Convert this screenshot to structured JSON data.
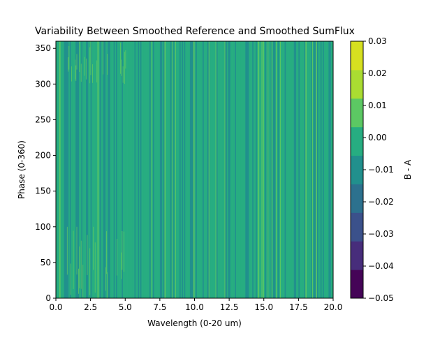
{
  "chart_data": {
    "type": "heatmap",
    "title": "Variability Between Smoothed Reference and Smoothed SumFlux",
    "xlabel": "Wavelength (0-20 um)",
    "ylabel": "Phase (0-360)",
    "xlim": [
      0,
      20
    ],
    "ylim": [
      0,
      360
    ],
    "x_ticks": [
      "0.0",
      "2.5",
      "5.0",
      "7.5",
      "10.0",
      "12.5",
      "15.0",
      "17.5",
      "20.0"
    ],
    "y_ticks": [
      "0",
      "50",
      "100",
      "150",
      "200",
      "250",
      "300",
      "350"
    ],
    "colorbar": {
      "label": "B - A",
      "levels": [
        -0.05,
        -0.04,
        -0.03,
        -0.02,
        -0.01,
        0.0,
        0.01,
        0.02,
        0.03
      ],
      "tick_labels": [
        "−0.05",
        "−0.04",
        "−0.03",
        "−0.02",
        "−0.01",
        "0.00",
        "0.01",
        "0.02",
        "0.03"
      ],
      "colors": [
        "#450457",
        "#472d7b",
        "#3b518b",
        "#2c718e",
        "#21908d",
        "#27ad81",
        "#5cc863",
        "#aadc32",
        "#d6e020"
      ]
    },
    "field": {
      "dominant_band": [
        0.0,
        0.01
      ],
      "secondary_band": [
        -0.01,
        0.0
      ],
      "high_band": [
        0.01,
        0.02
      ],
      "high_band_regions": [
        {
          "x": [
            0.8,
            5.2
          ],
          "y": [
            0,
            100
          ]
        },
        {
          "x": [
            0.8,
            5.2
          ],
          "y": [
            300,
            360
          ]
        }
      ]
    }
  }
}
